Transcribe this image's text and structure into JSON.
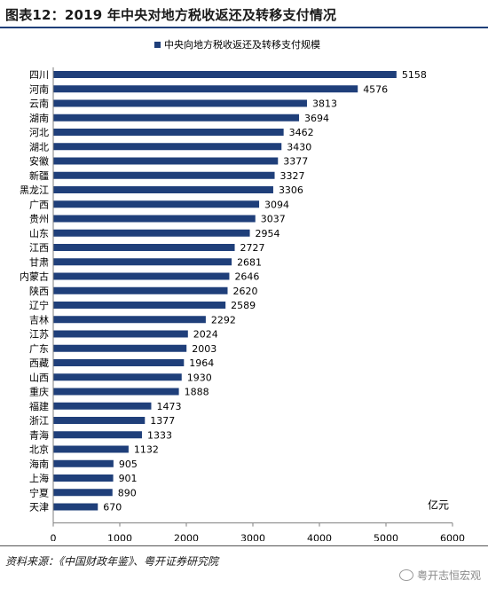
{
  "header": {
    "title": "图表12：2019 年中央对地方税收返还及转移支付情况"
  },
  "footer": {
    "source": "资料来源：《中国财政年鉴》、粤开证券研究院"
  },
  "watermark": {
    "text": "粤开志恒宏观",
    "icon": "wechat-icon"
  },
  "colors": {
    "bar": "#1f3f7a",
    "title_rule": "#1f3f7a"
  },
  "chart_data": {
    "type": "bar",
    "orientation": "horizontal",
    "categories": [
      "四川",
      "河南",
      "云南",
      "湖南",
      "河北",
      "湖北",
      "安徽",
      "新疆",
      "黑龙江",
      "广西",
      "贵州",
      "山东",
      "江西",
      "甘肃",
      "内蒙古",
      "陕西",
      "辽宁",
      "吉林",
      "江苏",
      "广东",
      "西藏",
      "山西",
      "重庆",
      "福建",
      "浙江",
      "青海",
      "北京",
      "海南",
      "上海",
      "宁夏",
      "天津"
    ],
    "series": [
      {
        "name": "中央向地方税收返还及转移支付规模",
        "values": [
          5158,
          4576,
          3813,
          3694,
          3462,
          3430,
          3377,
          3327,
          3306,
          3094,
          3037,
          2954,
          2727,
          2681,
          2646,
          2620,
          2589,
          2292,
          2024,
          2003,
          1964,
          1930,
          1888,
          1473,
          1377,
          1333,
          1132,
          905,
          901,
          890,
          670
        ]
      }
    ],
    "x_ticks": [
      0,
      1000,
      2000,
      3000,
      4000,
      5000,
      6000
    ],
    "xlim": [
      0,
      6000
    ],
    "unit_label": "亿元",
    "legend_position": "top",
    "grid": false,
    "data_labels": true
  }
}
